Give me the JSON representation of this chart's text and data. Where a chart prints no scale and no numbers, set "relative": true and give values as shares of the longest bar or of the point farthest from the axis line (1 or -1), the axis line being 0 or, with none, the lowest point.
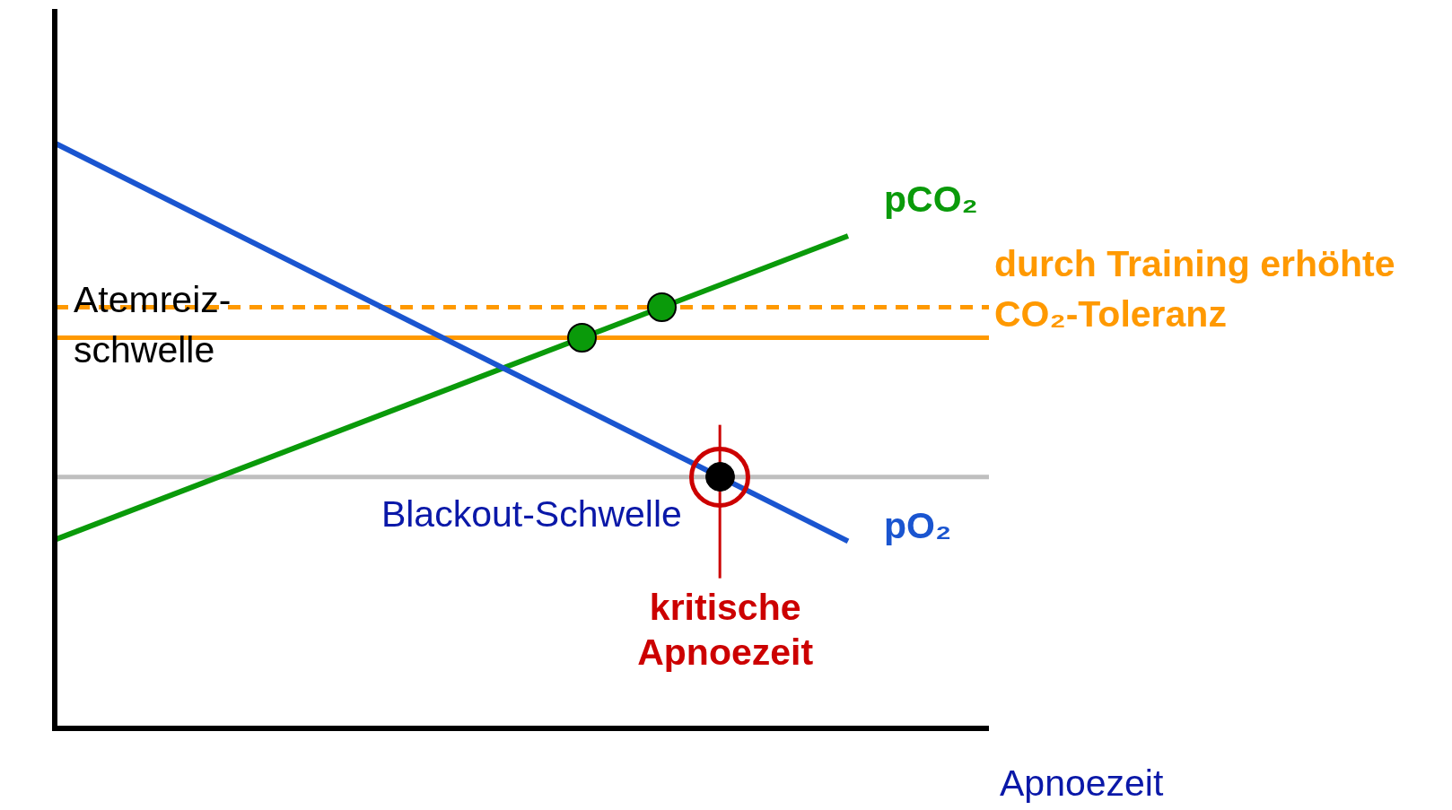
{
  "chart_data": {
    "type": "line",
    "relative": true,
    "xlabel": "Apnoezeit",
    "legend": false,
    "categories": [
      null,
      null
    ],
    "series": [
      {
        "name": "pO₂",
        "color": "#1a55d0",
        "values": [
          1.0,
          0.32
        ]
      },
      {
        "name": "pCO₂",
        "color": "#0a9a0a",
        "values": [
          0.323,
          0.842
        ]
      }
    ],
    "ref_lines": [
      {
        "axis": "y",
        "value": 0.668,
        "label": "Atemreiz-schwelle",
        "color": "#ff9900"
      },
      {
        "axis": "y",
        "value": 0.72,
        "label": "durch Training erhöhte CO₂-Toleranz",
        "color": "#ff9900",
        "line_style": "dashed"
      },
      {
        "axis": "y",
        "value": 0.43,
        "label": "Blackout-Schwelle",
        "color": "#bfbfbf"
      }
    ],
    "annotations": [
      "kritische Apnoezeit"
    ]
  }
}
